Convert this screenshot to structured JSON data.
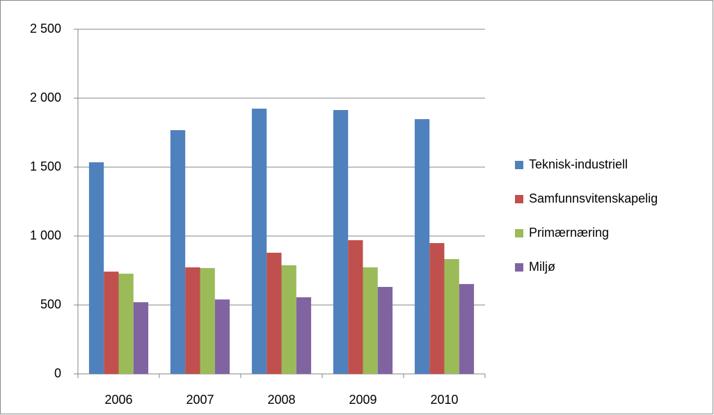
{
  "chart_data": {
    "type": "bar",
    "categories": [
      "2006",
      "2007",
      "2008",
      "2009",
      "2010"
    ],
    "series": [
      {
        "name": "Teknisk-industriell",
        "color": "#4f81bd",
        "values": [
          1535,
          1768,
          1924,
          1914,
          1848
        ]
      },
      {
        "name": "Samfunnsvitenskapelig",
        "color": "#c0504d",
        "values": [
          742,
          773,
          879,
          970,
          949
        ]
      },
      {
        "name": "Primærnæring",
        "color": "#9bbb59",
        "values": [
          727,
          768,
          788,
          773,
          833
        ]
      },
      {
        "name": "Miljø",
        "color": "#8064a2",
        "values": [
          520,
          540,
          556,
          631,
          652
        ]
      }
    ],
    "ylim": [
      0,
      2500
    ],
    "yticks": [
      0,
      500,
      {
        "value": 1000,
        "label": "1 000"
      },
      {
        "value": 1500,
        "label": "1 500"
      },
      {
        "value": 2000,
        "label": "2 000"
      },
      {
        "value": 2500,
        "label": "2 500"
      }
    ],
    "grid": true,
    "legend": "right"
  }
}
